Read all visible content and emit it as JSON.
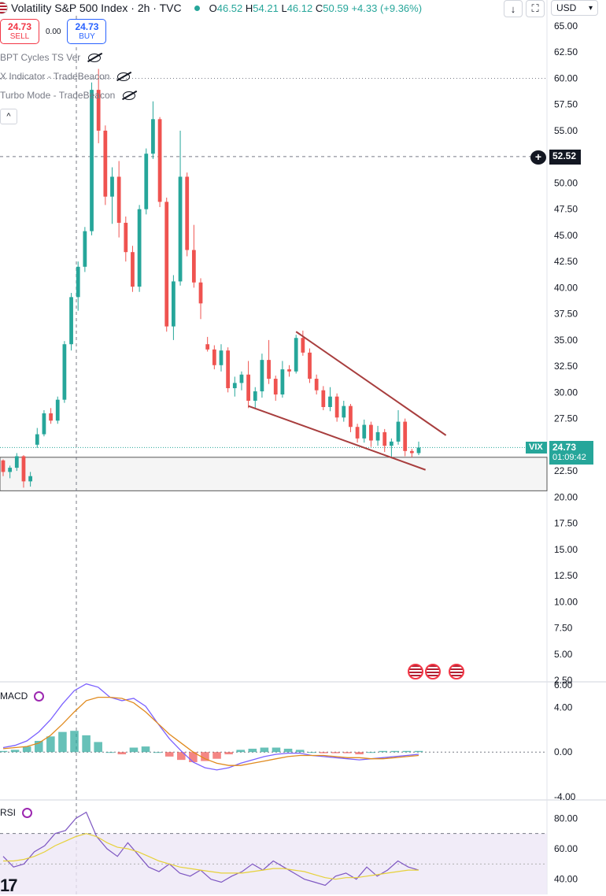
{
  "header": {
    "title": "Volatility S&P 500 Index · 2h · TVC",
    "o_label": "O",
    "o": "46.52",
    "h_label": "H",
    "h": "54.21",
    "l_label": "L",
    "l": "46.12",
    "c_label": "C",
    "c": "50.59",
    "change": "+4.33 (+9.36%)",
    "currency": "USD",
    "down_icon": "↓",
    "expand_icon": "⛶"
  },
  "trade": {
    "sell_price": "24.73",
    "sell_label": "SELL",
    "spread": "0.00",
    "buy_price": "24.73",
    "buy_label": "BUY"
  },
  "indicators": [
    {
      "label": "BPT Cycles TS Ver"
    },
    {
      "label": "X Indicator - TradeBeacon"
    },
    {
      "label": "Turbo Mode - TradeBeacon"
    }
  ],
  "collapse_icon": "^",
  "price_tags": {
    "crosshair": "52.52",
    "symbol": "VIX",
    "last": "24.73",
    "countdown": "01:09:42"
  },
  "macd_label": "MACD",
  "rsi_label": "RSI",
  "colors": {
    "up": "#26a69a",
    "down": "#ef5350",
    "trend": "#a83e3e",
    "macd": "#7b61ff",
    "signal": "#e08a1e",
    "rsi": "#7e57c2",
    "rsi_ma": "#e6d13a",
    "vix_tag": "#26a69a"
  },
  "chart_data": [
    {
      "type": "candlestick",
      "title": "",
      "y_axis_ticks": [
        "65.00",
        "62.50",
        "60.00",
        "57.50",
        "55.00",
        "52.50",
        "50.00",
        "47.50",
        "45.00",
        "42.50",
        "40.00",
        "37.50",
        "35.00",
        "32.50",
        "30.00",
        "27.50",
        "25.00",
        "22.50",
        "20.00",
        "17.50",
        "15.00",
        "12.50",
        "10.00",
        "7.50",
        "5.00",
        "2.50"
      ],
      "ylim": [
        2.5,
        65
      ],
      "candles": [
        [
          23.5,
          23.6,
          22.0,
          22.4
        ],
        [
          22.4,
          23.0,
          21.8,
          22.8
        ],
        [
          22.8,
          24.2,
          22.5,
          23.9
        ],
        [
          23.9,
          24.0,
          20.9,
          21.5
        ],
        [
          21.5,
          22.4,
          21.0,
          22.0
        ],
        [
          25.0,
          26.6,
          24.7,
          26.0
        ],
        [
          26.0,
          28.3,
          25.8,
          28.0
        ],
        [
          28.0,
          28.5,
          27.0,
          27.3
        ],
        [
          27.3,
          29.6,
          27.0,
          29.3
        ],
        [
          29.3,
          34.9,
          29.0,
          34.6
        ],
        [
          34.6,
          39.5,
          34.0,
          39.1
        ],
        [
          39.1,
          42.5,
          37.8,
          42.0
        ],
        [
          42.0,
          45.8,
          41.5,
          45.4
        ],
        [
          45.4,
          59.6,
          45.0,
          58.9
        ],
        [
          58.9,
          60.9,
          53.8,
          55.0
        ],
        [
          55.0,
          55.5,
          47.9,
          48.7
        ],
        [
          48.7,
          51.5,
          46.1,
          50.6
        ],
        [
          50.6,
          52.1,
          44.8,
          46.2
        ],
        [
          46.2,
          46.8,
          42.5,
          43.4
        ],
        [
          43.4,
          44.0,
          39.6,
          40.1
        ],
        [
          40.1,
          47.9,
          39.6,
          47.5
        ],
        [
          47.5,
          53.3,
          47.0,
          52.8
        ],
        [
          52.8,
          57.8,
          52.3,
          56.1
        ],
        [
          56.1,
          56.3,
          47.7,
          48.2
        ],
        [
          48.2,
          48.6,
          35.8,
          36.3
        ],
        [
          36.3,
          41.2,
          35.0,
          40.6
        ],
        [
          40.6,
          55.0,
          40.2,
          50.6
        ],
        [
          50.6,
          51.0,
          43.0,
          43.6
        ],
        [
          43.6,
          46.0,
          40.0,
          40.5
        ],
        [
          40.5,
          40.9,
          37.0,
          38.5
        ],
        [
          34.6,
          35.3,
          33.9,
          34.1
        ],
        [
          34.1,
          34.5,
          32.2,
          32.6
        ],
        [
          32.6,
          34.6,
          32.0,
          34.0
        ],
        [
          34.0,
          34.3,
          30.0,
          30.4
        ],
        [
          30.4,
          31.5,
          29.6,
          30.9
        ],
        [
          30.9,
          32.0,
          30.2,
          31.7
        ],
        [
          31.7,
          33.0,
          28.5,
          29.2
        ],
        [
          29.2,
          30.5,
          28.5,
          30.1
        ],
        [
          30.1,
          33.7,
          29.5,
          33.1
        ],
        [
          33.1,
          35.0,
          30.8,
          31.3
        ],
        [
          31.3,
          31.6,
          29.2,
          29.8
        ],
        [
          29.8,
          33.0,
          29.5,
          32.2
        ],
        [
          32.2,
          32.6,
          31.5,
          32.0
        ],
        [
          32.0,
          35.5,
          31.8,
          35.2
        ],
        [
          35.2,
          35.9,
          33.5,
          33.8
        ],
        [
          33.8,
          34.2,
          30.9,
          31.3
        ],
        [
          31.3,
          31.7,
          29.8,
          30.2
        ],
        [
          30.2,
          30.6,
          28.3,
          28.6
        ],
        [
          28.6,
          30.5,
          28.2,
          29.6
        ],
        [
          29.6,
          29.9,
          27.2,
          27.6
        ],
        [
          27.6,
          29.2,
          27.2,
          28.7
        ],
        [
          28.7,
          28.9,
          26.2,
          26.7
        ],
        [
          26.7,
          27.0,
          25.2,
          25.6
        ],
        [
          25.6,
          27.4,
          25.2,
          26.9
        ],
        [
          26.9,
          27.2,
          24.8,
          25.4
        ],
        [
          25.4,
          26.8,
          24.9,
          26.2
        ],
        [
          26.2,
          26.5,
          24.3,
          24.9
        ],
        [
          24.9,
          25.6,
          23.7,
          25.3
        ],
        [
          25.3,
          28.3,
          25.0,
          27.2
        ],
        [
          27.2,
          27.5,
          23.9,
          24.4
        ],
        [
          24.4,
          24.6,
          23.8,
          24.2
        ],
        [
          24.2,
          25.3,
          24.0,
          24.73
        ]
      ]
    },
    {
      "type": "line",
      "title": "MACD",
      "y_axis_ticks": [
        "6.00",
        "4.00",
        "0.00",
        "-4.00"
      ],
      "ylim": [
        -4,
        6
      ],
      "series": [
        {
          "values": [
            0.4,
            0.6,
            1.0,
            1.8,
            2.9,
            4.3,
            5.5,
            6.1,
            5.8,
            4.9,
            4.6,
            4.8,
            4.1,
            2.6,
            1.2,
            0.1,
            -0.9,
            -1.4,
            -1.6,
            -1.4,
            -1.0,
            -0.7,
            -0.4,
            -0.2,
            -0.1,
            -0.1,
            -0.3,
            -0.4,
            -0.5,
            -0.6,
            -0.7,
            -0.6,
            -0.5,
            -0.4,
            -0.3,
            -0.2
          ]
        },
        {
          "values": [
            0.3,
            0.4,
            0.5,
            0.8,
            1.5,
            2.5,
            3.6,
            4.6,
            4.9,
            4.9,
            4.8,
            4.4,
            3.6,
            2.6,
            1.6,
            0.8,
            0.0,
            -0.6,
            -1.0,
            -1.2,
            -1.2,
            -1.0,
            -0.8,
            -0.6,
            -0.4,
            -0.3,
            -0.3,
            -0.3,
            -0.4,
            -0.5,
            -0.5,
            -0.6,
            -0.6,
            -0.5,
            -0.4,
            -0.3
          ]
        }
      ],
      "histogram": [
        0.1,
        0.2,
        0.5,
        1.0,
        1.4,
        1.8,
        1.9,
        1.5,
        0.9,
        0.0,
        -0.2,
        0.4,
        0.5,
        0.0,
        -0.4,
        -0.7,
        -0.9,
        -0.8,
        -0.6,
        -0.2,
        0.2,
        0.3,
        0.4,
        0.4,
        0.3,
        0.2,
        0.0,
        -0.1,
        -0.1,
        -0.1,
        -0.2,
        0.0,
        0.1,
        0.1,
        0.1,
        0.1
      ]
    },
    {
      "type": "line",
      "title": "RSI",
      "y_axis_ticks": [
        "80.00",
        "60.00",
        "40.00"
      ],
      "ylim": [
        30,
        90
      ],
      "series": [
        {
          "values": [
            55,
            48,
            50,
            58,
            62,
            70,
            72,
            80,
            84,
            68,
            60,
            55,
            64,
            56,
            48,
            45,
            50,
            44,
            42,
            46,
            40,
            38,
            42,
            45,
            50,
            46,
            52,
            48,
            44,
            40,
            38,
            36,
            42,
            44,
            40,
            48,
            42,
            46,
            52,
            48,
            46
          ]
        },
        {
          "values": [
            52,
            52,
            53,
            55,
            58,
            62,
            65,
            68,
            70,
            68,
            64,
            61,
            60,
            58,
            55,
            52,
            50,
            48,
            47,
            46,
            45,
            44,
            44,
            44,
            45,
            46,
            47,
            47,
            46,
            45,
            43,
            41,
            40,
            41,
            41,
            42,
            43,
            44,
            45,
            46,
            46
          ]
        }
      ]
    }
  ]
}
